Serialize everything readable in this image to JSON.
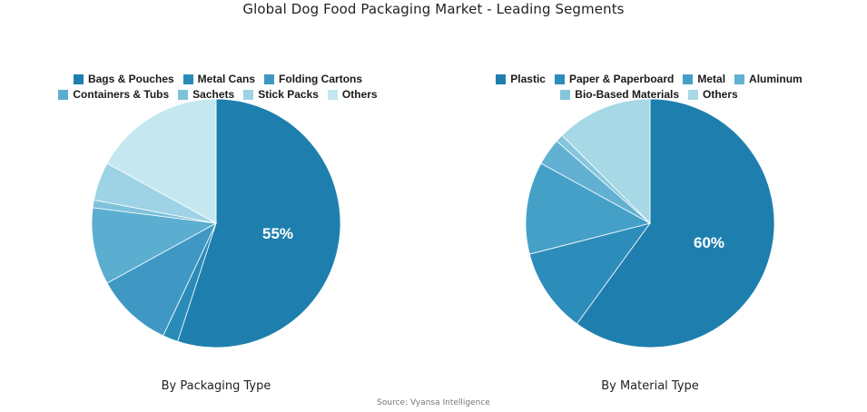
{
  "title": "Global Dog Food Packaging Market - Leading Segments",
  "source": "Source: Vyansa Intelligence",
  "chart_data": [
    {
      "type": "pie",
      "subtitle": "By Packaging Type",
      "center_label": "55%",
      "slices": [
        {
          "label": "Bags & Pouches",
          "value": 55,
          "color": "#1e7fae"
        },
        {
          "label": "Metal Cans",
          "value": 2,
          "color": "#2a8bb8"
        },
        {
          "label": "Folding Cartons",
          "value": 10,
          "color": "#3f98c4"
        },
        {
          "label": "Containers & Tubs",
          "value": 10,
          "color": "#5baecf"
        },
        {
          "label": "Sachets",
          "value": 1,
          "color": "#7ec2da"
        },
        {
          "label": "Stick Packs",
          "value": 5,
          "color": "#9dd3e4"
        },
        {
          "label": "Others",
          "value": 17,
          "color": "#c5e8f0"
        }
      ]
    },
    {
      "type": "pie",
      "subtitle": "By Material Type",
      "center_label": "60%",
      "slices": [
        {
          "label": "Plastic",
          "value": 60,
          "color": "#1e7fae"
        },
        {
          "label": "Paper & Paperboard",
          "value": 11,
          "color": "#2d8dba"
        },
        {
          "label": "Metal",
          "value": 12,
          "color": "#45a0c8"
        },
        {
          "label": "Aluminum",
          "value": 3.5,
          "color": "#62b1d2"
        },
        {
          "label": "Bio-Based Materials",
          "value": 1,
          "color": "#86c6dc"
        },
        {
          "label": "Others",
          "value": 12.5,
          "color": "#a6d8e6"
        }
      ]
    }
  ]
}
